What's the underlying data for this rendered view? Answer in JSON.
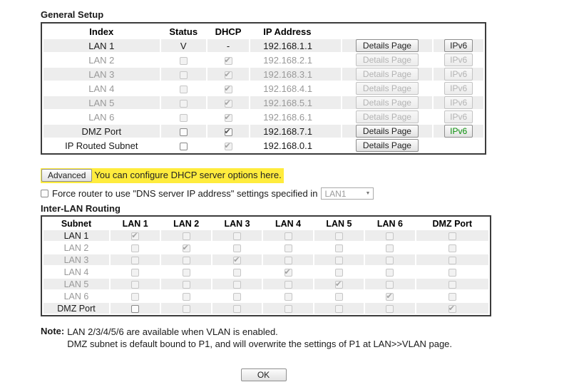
{
  "colors": {
    "highlight": "#ffec3d",
    "stripe": "#ededed",
    "muted": "#999999",
    "ipv6_green": "#0a8f0a",
    "table_border": "#3c3c3c"
  },
  "general_setup": {
    "title": "General Setup",
    "headers": {
      "index": "Index",
      "status": "Status",
      "dhcp": "DHCP",
      "ip": "IP Address"
    },
    "rows": [
      {
        "index": "LAN 1",
        "muted": false,
        "status": {
          "type": "text",
          "value": "V"
        },
        "dhcp": {
          "type": "text",
          "value": "-"
        },
        "ip": "192.168.1.1",
        "details": {
          "label": "Details Page",
          "enabled": true
        },
        "ipv6": {
          "label": "IPv6",
          "enabled": true,
          "green": false
        }
      },
      {
        "index": "LAN 2",
        "muted": true,
        "status": {
          "type": "checkbox",
          "checked": false,
          "enabled": false
        },
        "dhcp": {
          "type": "checkbox",
          "checked": true,
          "enabled": false
        },
        "ip": "192.168.2.1",
        "details": {
          "label": "Details Page",
          "enabled": false
        },
        "ipv6": {
          "label": "IPv6",
          "enabled": false,
          "green": false
        }
      },
      {
        "index": "LAN 3",
        "muted": true,
        "status": {
          "type": "checkbox",
          "checked": false,
          "enabled": false
        },
        "dhcp": {
          "type": "checkbox",
          "checked": true,
          "enabled": false
        },
        "ip": "192.168.3.1",
        "details": {
          "label": "Details Page",
          "enabled": false
        },
        "ipv6": {
          "label": "IPv6",
          "enabled": false,
          "green": false
        }
      },
      {
        "index": "LAN 4",
        "muted": true,
        "status": {
          "type": "checkbox",
          "checked": false,
          "enabled": false
        },
        "dhcp": {
          "type": "checkbox",
          "checked": true,
          "enabled": false
        },
        "ip": "192.168.4.1",
        "details": {
          "label": "Details Page",
          "enabled": false
        },
        "ipv6": {
          "label": "IPv6",
          "enabled": false,
          "green": false
        }
      },
      {
        "index": "LAN 5",
        "muted": true,
        "status": {
          "type": "checkbox",
          "checked": false,
          "enabled": false
        },
        "dhcp": {
          "type": "checkbox",
          "checked": true,
          "enabled": false
        },
        "ip": "192.168.5.1",
        "details": {
          "label": "Details Page",
          "enabled": false
        },
        "ipv6": {
          "label": "IPv6",
          "enabled": false,
          "green": false
        }
      },
      {
        "index": "LAN 6",
        "muted": true,
        "status": {
          "type": "checkbox",
          "checked": false,
          "enabled": false
        },
        "dhcp": {
          "type": "checkbox",
          "checked": true,
          "enabled": false
        },
        "ip": "192.168.6.1",
        "details": {
          "label": "Details Page",
          "enabled": false
        },
        "ipv6": {
          "label": "IPv6",
          "enabled": false,
          "green": false
        }
      },
      {
        "index": "DMZ Port",
        "muted": false,
        "status": {
          "type": "checkbox",
          "checked": false,
          "enabled": true
        },
        "dhcp": {
          "type": "checkbox",
          "checked": true,
          "enabled": true
        },
        "ip": "192.168.7.1",
        "details": {
          "label": "Details Page",
          "enabled": true
        },
        "ipv6": {
          "label": "IPv6",
          "enabled": true,
          "green": true
        }
      },
      {
        "index": "IP Routed Subnet",
        "muted": false,
        "status": {
          "type": "checkbox",
          "checked": false,
          "enabled": true
        },
        "dhcp": {
          "type": "checkbox",
          "checked": true,
          "enabled": false
        },
        "ip": "192.168.0.1",
        "details": {
          "label": "Details Page",
          "enabled": true
        },
        "ipv6": null
      }
    ]
  },
  "advanced": {
    "button_label": "Advanced",
    "text": "You can configure DHCP server options here."
  },
  "force_dns": {
    "label": "Force router to use \"DNS server IP address\" settings specified in",
    "checked": false,
    "select_value": "LAN1",
    "select_arrow": "▼"
  },
  "inter_lan": {
    "title": "Inter-LAN Routing",
    "headers": [
      "Subnet",
      "LAN 1",
      "LAN 2",
      "LAN 3",
      "LAN 4",
      "LAN 5",
      "LAN 6",
      "DMZ Port"
    ],
    "rows": [
      {
        "label": "LAN 1",
        "muted": false,
        "cells": [
          {
            "checked": true,
            "enabled": false
          },
          {
            "checked": false,
            "enabled": false
          },
          {
            "checked": false,
            "enabled": false
          },
          {
            "checked": false,
            "enabled": false
          },
          {
            "checked": false,
            "enabled": false
          },
          {
            "checked": false,
            "enabled": false
          },
          {
            "checked": false,
            "enabled": false
          }
        ]
      },
      {
        "label": "LAN 2",
        "muted": true,
        "cells": [
          {
            "checked": false,
            "enabled": false
          },
          {
            "checked": true,
            "enabled": false
          },
          {
            "checked": false,
            "enabled": false
          },
          {
            "checked": false,
            "enabled": false
          },
          {
            "checked": false,
            "enabled": false
          },
          {
            "checked": false,
            "enabled": false
          },
          {
            "checked": false,
            "enabled": false
          }
        ]
      },
      {
        "label": "LAN 3",
        "muted": true,
        "cells": [
          {
            "checked": false,
            "enabled": false
          },
          {
            "checked": false,
            "enabled": false
          },
          {
            "checked": true,
            "enabled": false
          },
          {
            "checked": false,
            "enabled": false
          },
          {
            "checked": false,
            "enabled": false
          },
          {
            "checked": false,
            "enabled": false
          },
          {
            "checked": false,
            "enabled": false
          }
        ]
      },
      {
        "label": "LAN 4",
        "muted": true,
        "cells": [
          {
            "checked": false,
            "enabled": false
          },
          {
            "checked": false,
            "enabled": false
          },
          {
            "checked": false,
            "enabled": false
          },
          {
            "checked": true,
            "enabled": false
          },
          {
            "checked": false,
            "enabled": false
          },
          {
            "checked": false,
            "enabled": false
          },
          {
            "checked": false,
            "enabled": false
          }
        ]
      },
      {
        "label": "LAN 5",
        "muted": true,
        "cells": [
          {
            "checked": false,
            "enabled": false
          },
          {
            "checked": false,
            "enabled": false
          },
          {
            "checked": false,
            "enabled": false
          },
          {
            "checked": false,
            "enabled": false
          },
          {
            "checked": true,
            "enabled": false
          },
          {
            "checked": false,
            "enabled": false
          },
          {
            "checked": false,
            "enabled": false
          }
        ]
      },
      {
        "label": "LAN 6",
        "muted": true,
        "cells": [
          {
            "checked": false,
            "enabled": false
          },
          {
            "checked": false,
            "enabled": false
          },
          {
            "checked": false,
            "enabled": false
          },
          {
            "checked": false,
            "enabled": false
          },
          {
            "checked": false,
            "enabled": false
          },
          {
            "checked": true,
            "enabled": false
          },
          {
            "checked": false,
            "enabled": false
          }
        ]
      },
      {
        "label": "DMZ Port",
        "muted": false,
        "cells": [
          {
            "checked": false,
            "enabled": true
          },
          {
            "checked": false,
            "enabled": false
          },
          {
            "checked": false,
            "enabled": false
          },
          {
            "checked": false,
            "enabled": false
          },
          {
            "checked": false,
            "enabled": false
          },
          {
            "checked": false,
            "enabled": false
          },
          {
            "checked": true,
            "enabled": false
          }
        ]
      }
    ]
  },
  "note": {
    "label": "Note:",
    "lines": [
      "LAN 2/3/4/5/6 are available when VLAN is enabled.",
      "DMZ subnet is default bound to P1, and will overwrite the settings of P1 at LAN>>VLAN page."
    ]
  },
  "ok_label": "OK"
}
